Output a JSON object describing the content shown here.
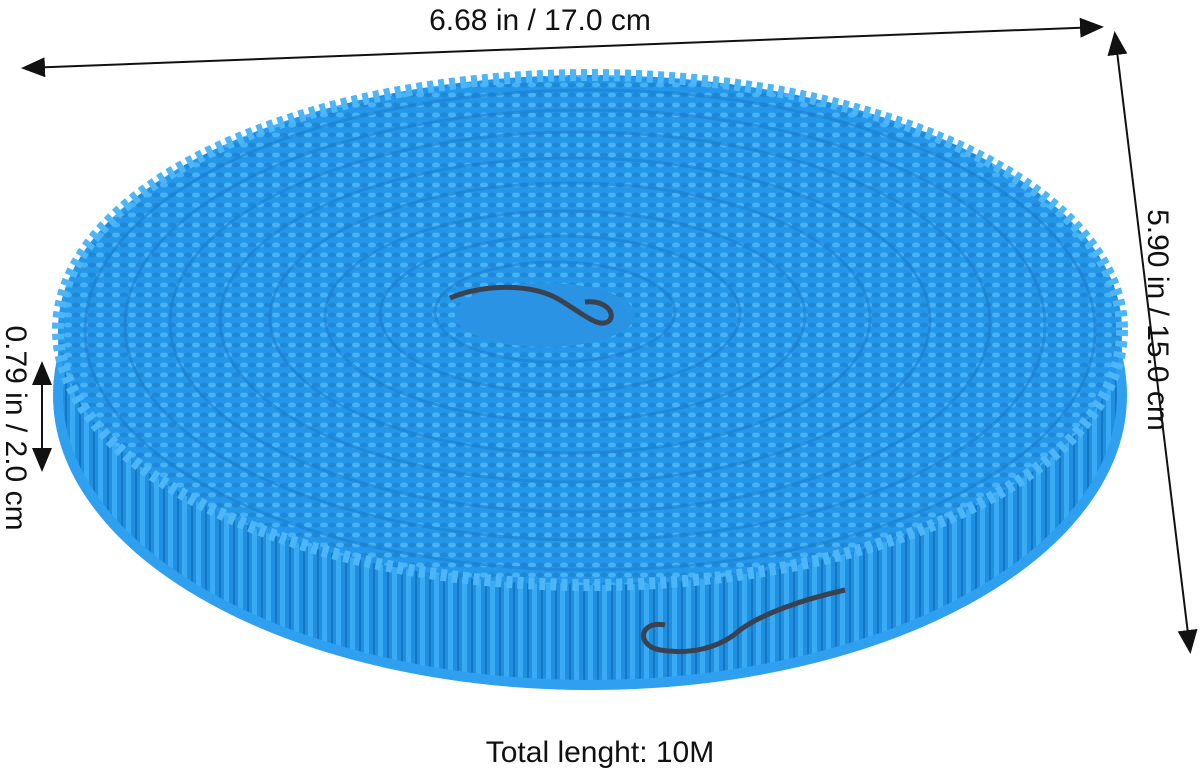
{
  "annotations": {
    "width": "6.68 in / 17.0 cm",
    "depth": "5.90 in / 15.0 cm",
    "height": "0.79 in / 2.0 cm",
    "total_length": "Total lenght: 10M"
  }
}
